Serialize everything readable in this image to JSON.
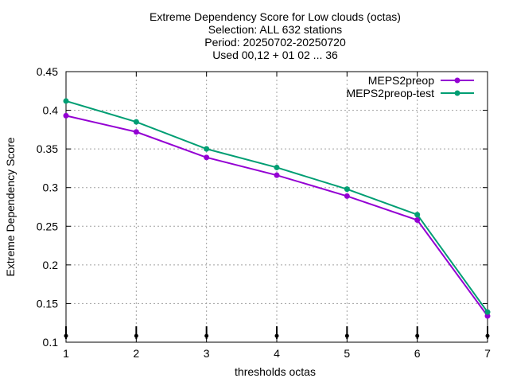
{
  "chart_data": {
    "type": "line",
    "title_lines": [
      "Extreme Dependency Score  for Low clouds (octas)",
      "Selection: ALL    632 stations",
      "Period: 20250702-20250720",
      "Used 00,12 + 01 02 ... 36"
    ],
    "xlabel": "thresholds octas",
    "ylabel": "Extreme Dependency Score",
    "x": [
      1,
      2,
      3,
      4,
      5,
      6,
      7
    ],
    "xlim": [
      1,
      7
    ],
    "ylim": [
      0.1,
      0.45
    ],
    "xticks": [
      1,
      2,
      3,
      4,
      5,
      6,
      7
    ],
    "yticks": [
      0.1,
      0.15,
      0.2,
      0.25,
      0.3,
      0.35,
      0.4,
      0.45
    ],
    "ytick_labels": [
      "0.1",
      "0.15",
      "0.2",
      "0.25",
      "0.3",
      "0.35",
      "0.4",
      "0.45"
    ],
    "grid": true,
    "legend_position": "top-right",
    "series": [
      {
        "name": "MEPS2preop",
        "color": "#9400d3",
        "values": [
          0.393,
          0.372,
          0.339,
          0.316,
          0.289,
          0.258,
          0.134
        ]
      },
      {
        "name": "MEPS2preop-test",
        "color": "#009e73",
        "values": [
          0.412,
          0.385,
          0.35,
          0.326,
          0.298,
          0.265,
          0.139
        ]
      }
    ]
  }
}
